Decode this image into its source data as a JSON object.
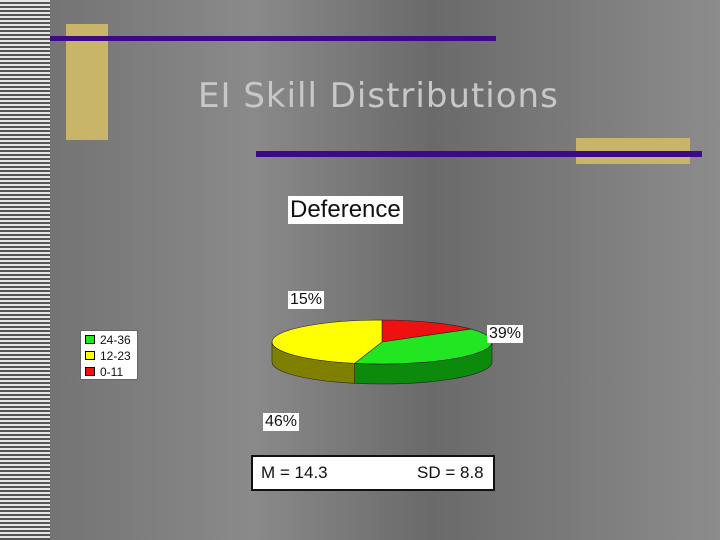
{
  "slide": {
    "title": "EI Skill Distributions",
    "stats": {
      "mean": "M = 14.3",
      "sd": "SD = 8.8"
    }
  },
  "colors": {
    "accent_purple": "#3c0a82",
    "accent_tan": "#c8b56a"
  },
  "chart_data": {
    "type": "pie",
    "title": "Deference",
    "three_d": true,
    "legend_position": "left",
    "slices": [
      {
        "label": "24-36",
        "value": 39,
        "pct_label": "39%",
        "color": "#22e622",
        "side_color": "#0c8a0c"
      },
      {
        "label": "12-23",
        "value": 46,
        "pct_label": "46%",
        "color": "#ffff00",
        "side_color": "#808000"
      },
      {
        "label": "0-11",
        "value": 15,
        "pct_label": "15%",
        "color": "#ee1111",
        "side_color": "#8a0000"
      }
    ]
  }
}
